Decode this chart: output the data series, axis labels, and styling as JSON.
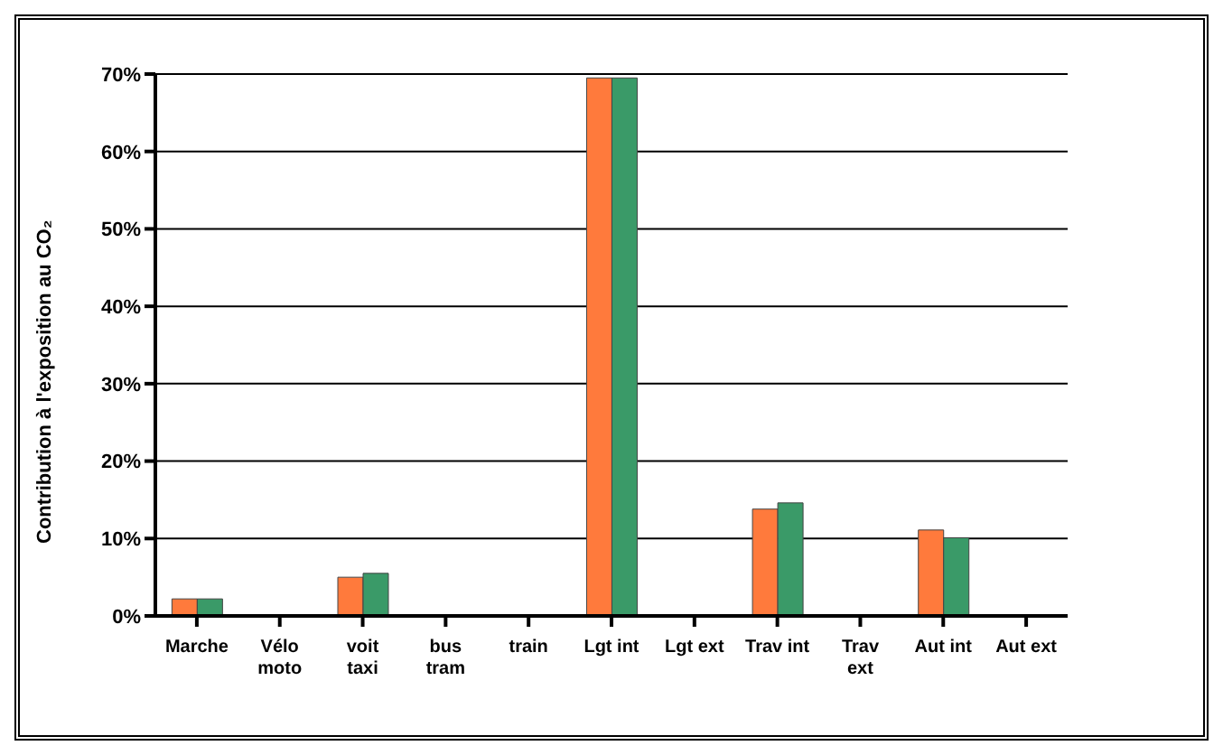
{
  "chart_data": {
    "type": "bar",
    "ylabel": "Contribution à l'exposition au CO₂",
    "categories": [
      "Marche",
      "Vélo\nmoto",
      "voit\ntaxi",
      "bus\ntram",
      "train",
      "Lgt int",
      "Lgt ext",
      "Trav int",
      "Trav\next",
      "Aut int",
      "Aut ext"
    ],
    "series": [
      {
        "color": "#ff7a3c",
        "values": [
          2.2,
          0,
          5.0,
          0,
          0,
          69.5,
          0,
          13.8,
          0,
          11.1,
          0
        ]
      },
      {
        "color": "#3a9a68",
        "values": [
          2.2,
          0,
          5.5,
          0,
          0,
          69.5,
          0,
          14.6,
          0,
          10.1,
          0
        ]
      }
    ],
    "ylim": [
      0,
      70
    ],
    "yticks": [
      {
        "value": 0,
        "label": "0%"
      },
      {
        "value": 10,
        "label": "10%"
      },
      {
        "value": 20,
        "label": "20%"
      },
      {
        "value": 30,
        "label": "30%"
      },
      {
        "value": 40,
        "label": "40%"
      },
      {
        "value": 50,
        "label": "50%"
      },
      {
        "value": 60,
        "label": "60%"
      },
      {
        "value": 70,
        "label": "70%"
      }
    ],
    "grid": "y",
    "legend": false
  }
}
